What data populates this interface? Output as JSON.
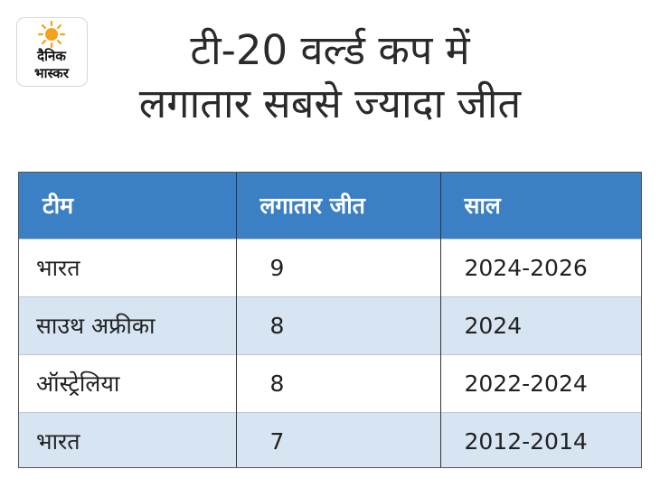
{
  "logo": {
    "name": "dainik-bhaskar-logo",
    "line1": "दैनिक",
    "line2": "भास्कर",
    "sun_color": "#f3a21b"
  },
  "title": {
    "line1": "टी-20 वर्ल्ड कप में",
    "line2": "लगातार सबसे ज्यादा जीत"
  },
  "table": {
    "headers": [
      "टीम",
      "लगातार जीत",
      "साल"
    ],
    "rows": [
      [
        "भारत",
        "9",
        "2024-2026"
      ],
      [
        "साउथ अफ्रीका",
        "8",
        "2024"
      ],
      [
        "ऑस्ट्रेलिया",
        "8",
        "2022-2024"
      ],
      [
        "भारत",
        "7",
        "2012-2014"
      ]
    ]
  },
  "colors": {
    "header_bg": "#3b7fc4",
    "alt_row_bg": "#d7e4f2",
    "text": "#222222"
  }
}
